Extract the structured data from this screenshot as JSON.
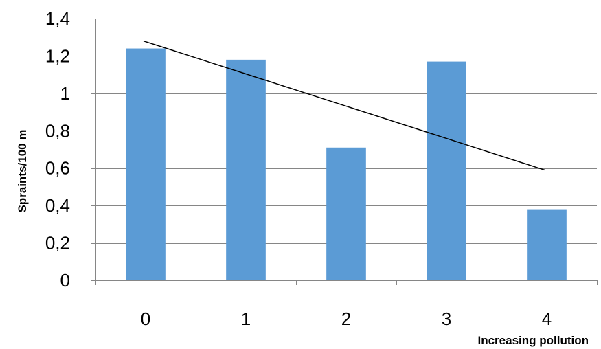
{
  "chart_data": {
    "type": "bar",
    "title": "",
    "xlabel": "Increasing pollution",
    "ylabel": "Spraints/100 m",
    "categories": [
      "0",
      "1",
      "2",
      "3",
      "4"
    ],
    "series": [
      {
        "values": [
          1.24,
          1.18,
          0.71,
          1.17,
          0.38
        ],
        "color": "#5b9bd5"
      }
    ],
    "trendline": {
      "type": "linear",
      "start": {
        "x": "0",
        "y": 1.28
      },
      "end": {
        "x": "4",
        "y": 0.59
      },
      "color": "#000000"
    },
    "ylim": [
      0,
      1.4
    ],
    "yticks": [
      0,
      0.2,
      0.4,
      0.6,
      0.8,
      1,
      1.2,
      1.4
    ],
    "ytick_labels": [
      "0",
      "0,2",
      "0,4",
      "0,6",
      "0,8",
      "1",
      "1,2",
      "1,4"
    ],
    "grid": true,
    "gridline_color": "#868686",
    "axis_color": "#868686",
    "legend": "none"
  }
}
